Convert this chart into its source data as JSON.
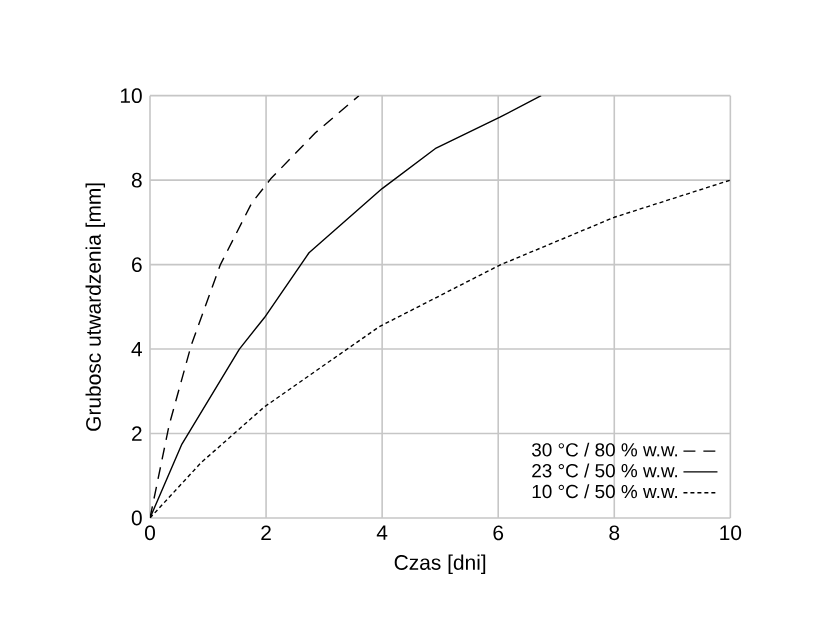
{
  "chart_data": {
    "type": "line",
    "xlabel": "Czas [dni]",
    "ylabel": "Grubosc utwardzenia [mm]",
    "xlim": [
      0,
      10
    ],
    "ylim": [
      0,
      10
    ],
    "xticks": [
      0,
      2,
      4,
      6,
      8,
      10
    ],
    "yticks": [
      0,
      2,
      4,
      6,
      8,
      10
    ],
    "grid": true,
    "legend": "bottom right",
    "marker": "none",
    "series": [
      {
        "name": "30 °C / 80 % w.w.",
        "color": "#000000",
        "line_style": "dashed",
        "x": [
          0,
          0.33,
          0.71,
          1.21,
          1.75,
          2.08,
          2.85,
          3.6
        ],
        "values": [
          0,
          2.2,
          4.09,
          5.99,
          7.45,
          8.03,
          9.12,
          10
        ]
      },
      {
        "name": "23 °C / 50 % w.w.",
        "color": "#000000",
        "line_style": "solid",
        "x": [
          0,
          0.55,
          1.54,
          1.97,
          2.74,
          4.0,
          4.93,
          6.03,
          6.74
        ],
        "values": [
          0,
          1.75,
          4.0,
          4.74,
          6.28,
          7.8,
          8.76,
          9.49,
          10
        ]
      },
      {
        "name": "10 °C / 50 % w.w.",
        "color": "#000000",
        "line_style": "dotted",
        "x": [
          0,
          0.88,
          1.97,
          3.95,
          6.03,
          8.0,
          10
        ],
        "values": [
          0,
          1.31,
          2.63,
          4.53,
          5.99,
          7.12,
          8.0
        ]
      }
    ]
  }
}
